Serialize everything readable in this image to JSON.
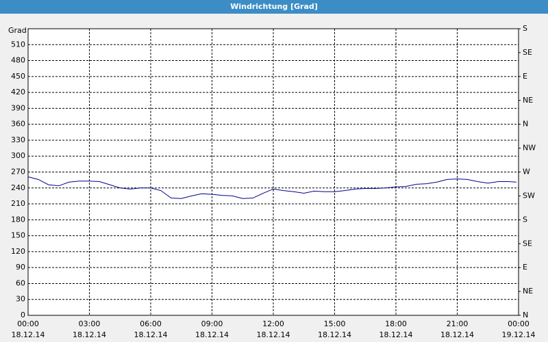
{
  "chart_data": {
    "type": "line",
    "title": "Windrichtung [Grad]",
    "ylabel": "Grad",
    "x": [
      0,
      0.5,
      1,
      1.5,
      2,
      2.5,
      3,
      3.5,
      4,
      4.5,
      5,
      5.5,
      6,
      6.5,
      7,
      7.5,
      8,
      8.5,
      9,
      9.5,
      10,
      10.5,
      11,
      11.5,
      12,
      12.5,
      13,
      13.5,
      14,
      14.5,
      15,
      15.5,
      16,
      16.5,
      17,
      17.5,
      18,
      18.5,
      19,
      19.5,
      20,
      20.5,
      21,
      21.5,
      22,
      22.5,
      23,
      23.5,
      23.9
    ],
    "series": [
      {
        "name": "Windrichtung",
        "color": "#00008b",
        "values": [
          261,
          256,
          246,
          244,
          251,
          253,
          253,
          252,
          246,
          240,
          238,
          240,
          240,
          235,
          221,
          220,
          225,
          229,
          228,
          226,
          225,
          220,
          221,
          230,
          238,
          235,
          233,
          230,
          234,
          233,
          233,
          235,
          238,
          239,
          239,
          240,
          242,
          243,
          247,
          248,
          251,
          256,
          257,
          256,
          252,
          249,
          252,
          252,
          251
        ]
      }
    ],
    "xlim": [
      0,
      24
    ],
    "xticks": [
      {
        "value": 0,
        "label": "00:00"
      },
      {
        "value": 3,
        "label": "03:00"
      },
      {
        "value": 6,
        "label": "06:00"
      },
      {
        "value": 9,
        "label": "09:00"
      },
      {
        "value": 12,
        "label": "12:00"
      },
      {
        "value": 15,
        "label": "15:00"
      },
      {
        "value": 18,
        "label": "18:00"
      },
      {
        "value": 21,
        "label": "21:00"
      },
      {
        "value": 24,
        "label": "00:00"
      }
    ],
    "xtick_dates": [
      "18.12.14",
      "18.12.14",
      "18.12.14",
      "18.12.14",
      "18.12.14",
      "18.12.14",
      "18.12.14",
      "18.12.14",
      "19.12.14"
    ],
    "ylim": [
      0,
      540
    ],
    "yticks": [
      0,
      30,
      60,
      90,
      120,
      150,
      180,
      210,
      240,
      270,
      300,
      330,
      360,
      390,
      420,
      450,
      480,
      510
    ],
    "y2lim": [
      0,
      540
    ],
    "y2ticks": [
      {
        "value": 0,
        "label": "N"
      },
      {
        "value": 45,
        "label": "NE"
      },
      {
        "value": 90,
        "label": "E"
      },
      {
        "value": 135,
        "label": "SE"
      },
      {
        "value": 180,
        "label": "S"
      },
      {
        "value": 225,
        "label": "SW"
      },
      {
        "value": 270,
        "label": "W"
      },
      {
        "value": 315,
        "label": "NW"
      },
      {
        "value": 360,
        "label": "N"
      },
      {
        "value": 405,
        "label": "NE"
      },
      {
        "value": 450,
        "label": "E"
      },
      {
        "value": 495,
        "label": "SE"
      },
      {
        "value": 540,
        "label": "S"
      }
    ],
    "grid": true
  }
}
